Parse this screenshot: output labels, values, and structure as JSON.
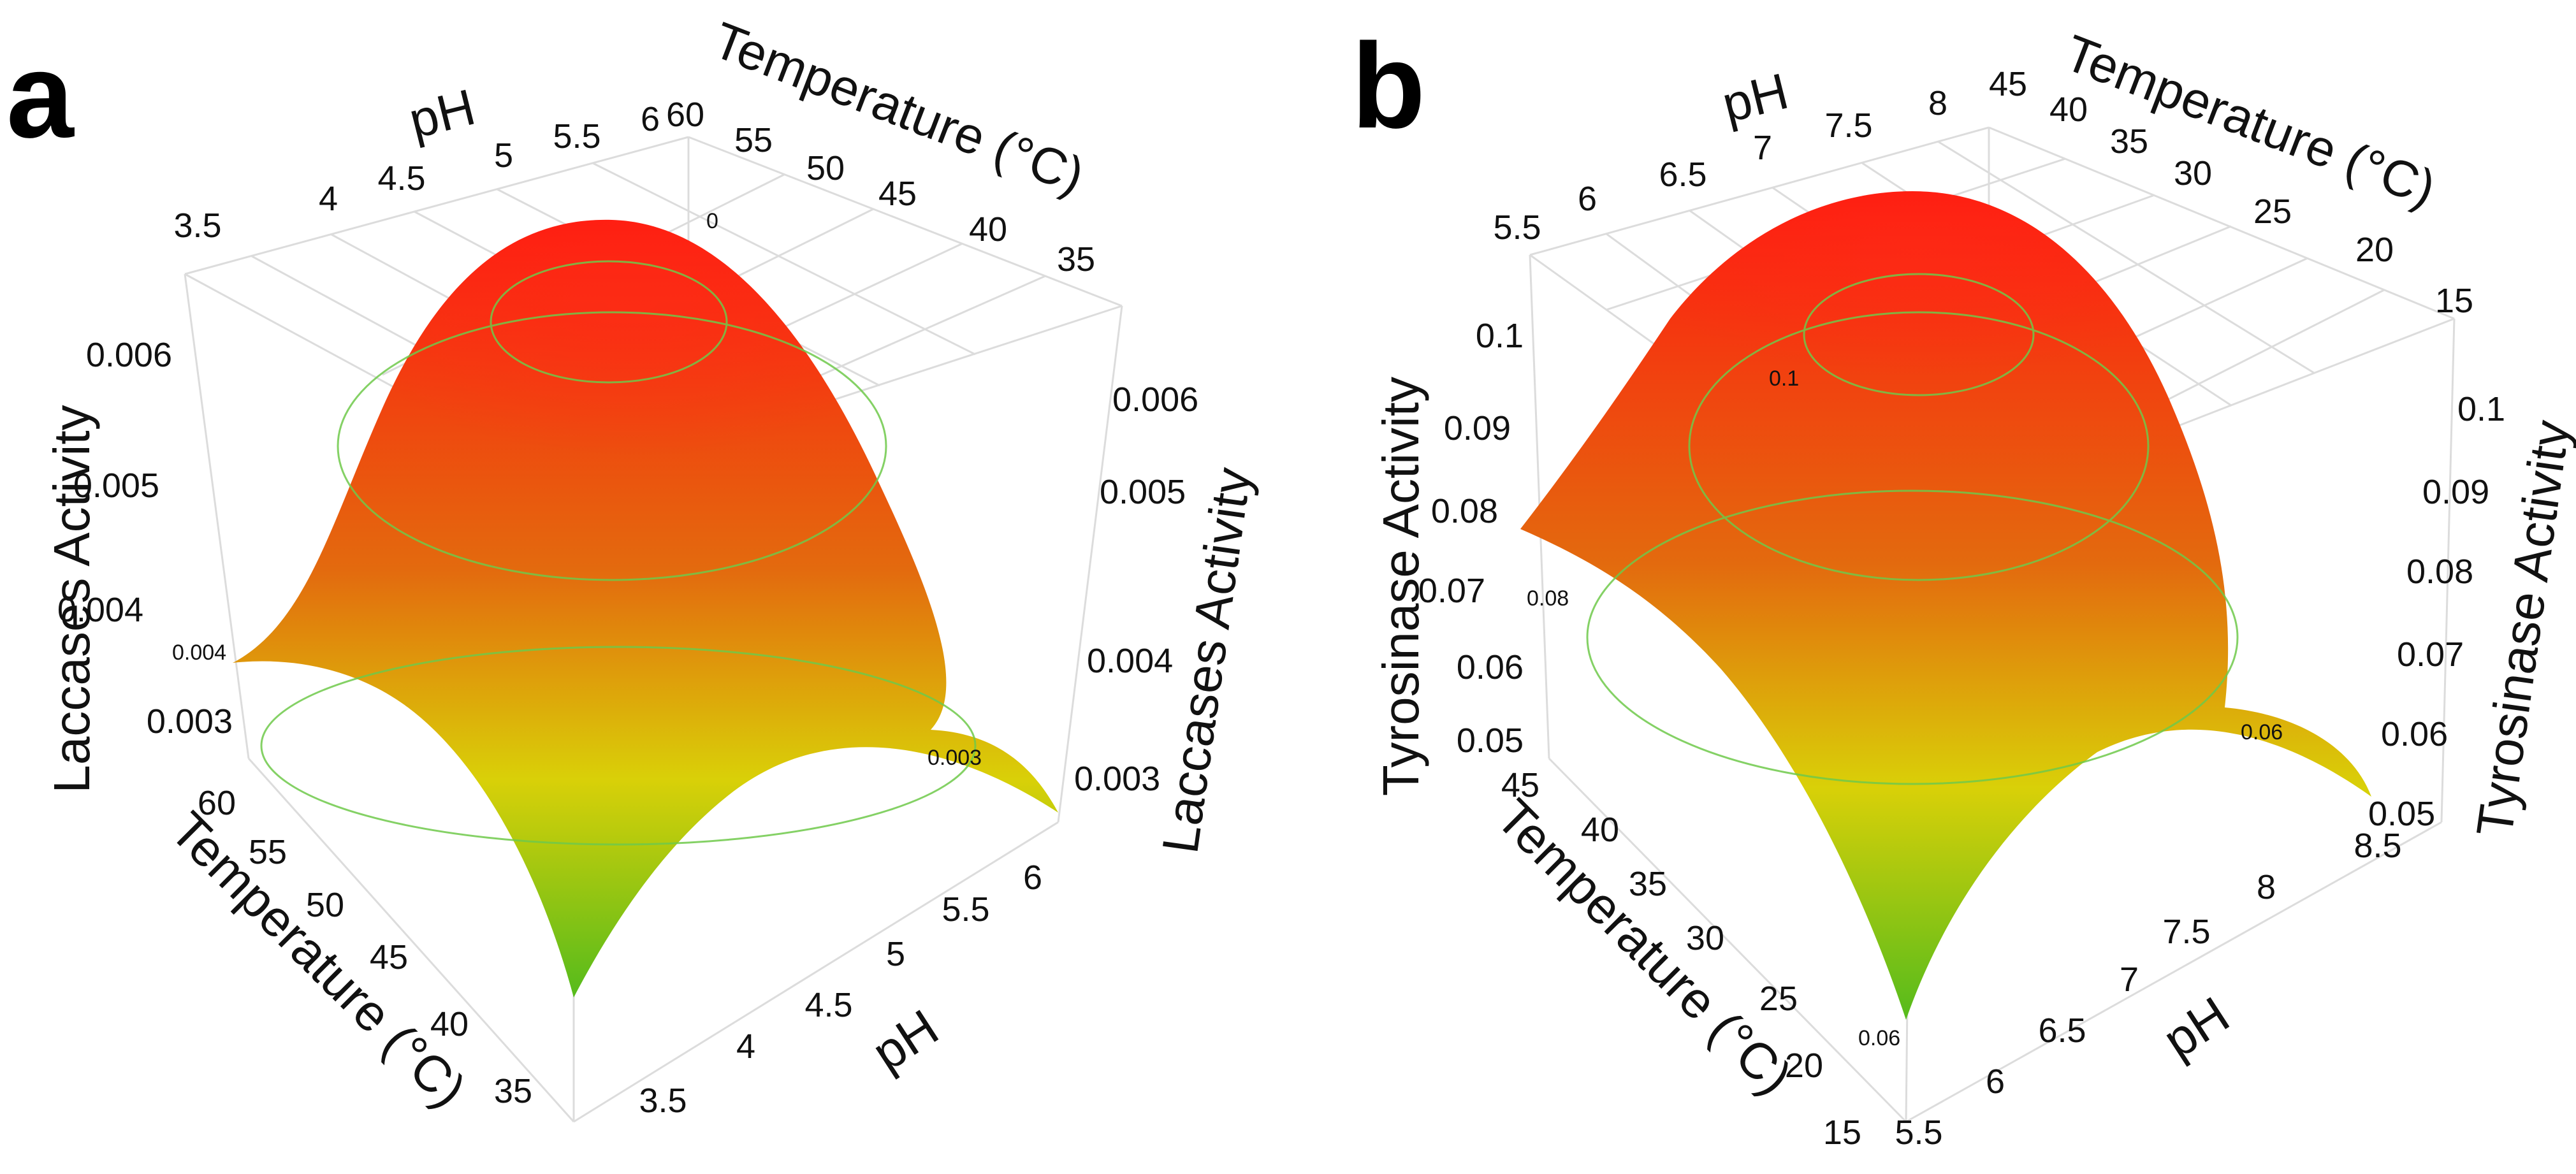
{
  "colors": {
    "high": "#ff1a10",
    "mid": "#e36a0e",
    "low": "#d9d008",
    "min": "#55bb1c",
    "contour": "#6fc94a",
    "contour_label": "#39d139",
    "grid": "#dcdcdc"
  },
  "chart_data": [
    {
      "panel": "a",
      "type": "surface",
      "title": "",
      "x_label": "pH",
      "y_label": "Temperature (°C)",
      "z_label": "Laccases Activity",
      "x_ticks_back": [
        "3.5",
        "4",
        "4.5",
        "5",
        "5.5",
        "6"
      ],
      "x_ticks_front": [
        "3.5",
        "4",
        "4.5",
        "5",
        "5.5",
        "6"
      ],
      "y_ticks_back": [
        "60",
        "55",
        "50",
        "45",
        "40",
        "35"
      ],
      "y_ticks_front": [
        "60",
        "55",
        "50",
        "45",
        "40",
        "35"
      ],
      "z_ticks_left": [
        "0.006",
        "0.005",
        "0.004",
        "0.003"
      ],
      "z_ticks_right": [
        "0.006",
        "0.005",
        "0.004",
        "0.003"
      ],
      "x_range": [
        3.5,
        6
      ],
      "y_range": [
        35,
        60
      ],
      "z_range": [
        0.003,
        0.0067
      ],
      "surface": {
        "peak_z": 0.0066,
        "corner_z": [
          0.0035,
          0.0032,
          0.003,
          0.0024
        ]
      },
      "contour_labels": [
        "0",
        "0.004",
        "0.003"
      ]
    },
    {
      "panel": "b",
      "type": "surface",
      "title": "",
      "x_label": "pH",
      "y_label": "Temperature (°C)",
      "z_label": "Tyrosinase Activity",
      "x_ticks_back": [
        "5.5",
        "6",
        "6.5",
        "7",
        "7.5",
        "8"
      ],
      "x_ticks_front": [
        "5.5",
        "6",
        "6.5",
        "7",
        "7.5",
        "8",
        "8.5"
      ],
      "y_ticks_back": [
        "45",
        "40",
        "35",
        "30",
        "25",
        "20",
        "15"
      ],
      "y_ticks_front": [
        "45",
        "40",
        "35",
        "30",
        "25",
        "20",
        "15"
      ],
      "z_ticks_left": [
        "0.1",
        "0.09",
        "0.08",
        "0.07",
        "0.06",
        "0.05"
      ],
      "z_ticks_right": [
        "0.1",
        "0.09",
        "0.08",
        "0.07",
        "0.06",
        "0.05"
      ],
      "x_range": [
        5.5,
        8.5
      ],
      "y_range": [
        15,
        45
      ],
      "z_range": [
        0.05,
        0.105
      ],
      "surface": {
        "peak_z": 0.104,
        "corner_z": [
          0.072,
          0.06,
          0.051,
          0.058
        ]
      },
      "contour_labels": [
        "0.1",
        "0.08",
        "0.06",
        "0.06"
      ]
    }
  ]
}
